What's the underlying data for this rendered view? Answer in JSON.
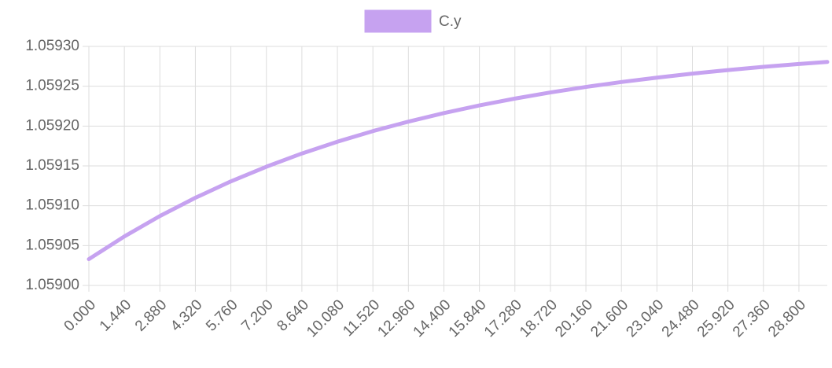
{
  "chart_data": {
    "type": "line",
    "x": [
      0,
      1.44,
      2.88,
      4.32,
      5.76,
      7.2,
      8.64,
      10.08,
      11.52,
      12.96,
      14.4,
      15.84,
      17.28,
      18.72,
      20.16,
      21.6,
      23.04,
      24.48,
      25.92,
      27.36,
      28.8,
      29.95
    ],
    "series": [
      {
        "name": "C.y",
        "color": "#c6a2f0",
        "values": [
          1.059033,
          1.0590615,
          1.0590871,
          1.05911,
          1.0591306,
          1.059149,
          1.0591656,
          1.0591804,
          1.0591937,
          1.0592056,
          1.0592163,
          1.0592259,
          1.0592345,
          1.0592422,
          1.0592491,
          1.0592553,
          1.0592608,
          1.0592658,
          1.0592703,
          1.0592743,
          1.0592779,
          1.0592805
        ]
      }
    ],
    "xlim": [
      0,
      29.95
    ],
    "xticks": [
      {
        "value": 0,
        "label": "0.000"
      },
      {
        "value": 1.44,
        "label": "1.440"
      },
      {
        "value": 2.88,
        "label": "2.880"
      },
      {
        "value": 4.32,
        "label": "4.320"
      },
      {
        "value": 5.76,
        "label": "5.760"
      },
      {
        "value": 7.2,
        "label": "7.200"
      },
      {
        "value": 8.64,
        "label": "8.640"
      },
      {
        "value": 10.08,
        "label": "10.080"
      },
      {
        "value": 11.52,
        "label": "11.520"
      },
      {
        "value": 12.96,
        "label": "12.960"
      },
      {
        "value": 14.4,
        "label": "14.400"
      },
      {
        "value": 15.84,
        "label": "15.840"
      },
      {
        "value": 17.28,
        "label": "17.280"
      },
      {
        "value": 18.72,
        "label": "18.720"
      },
      {
        "value": 20.16,
        "label": "20.160"
      },
      {
        "value": 21.6,
        "label": "21.600"
      },
      {
        "value": 23.04,
        "label": "23.040"
      },
      {
        "value": 24.48,
        "label": "24.480"
      },
      {
        "value": 25.92,
        "label": "25.920"
      },
      {
        "value": 27.36,
        "label": "27.360"
      },
      {
        "value": 28.8,
        "label": "28.800"
      }
    ],
    "ylim": [
      1.059,
      1.0593
    ],
    "yticks": [
      {
        "value": 1.059,
        "label": "1.05900"
      },
      {
        "value": 1.05905,
        "label": "1.05905"
      },
      {
        "value": 1.0591,
        "label": "1.05910"
      },
      {
        "value": 1.05915,
        "label": "1.05915"
      },
      {
        "value": 1.0592,
        "label": "1.05920"
      },
      {
        "value": 1.05925,
        "label": "1.05925"
      },
      {
        "value": 1.0593,
        "label": "1.05930"
      }
    ],
    "grid": true,
    "legend": "top"
  }
}
